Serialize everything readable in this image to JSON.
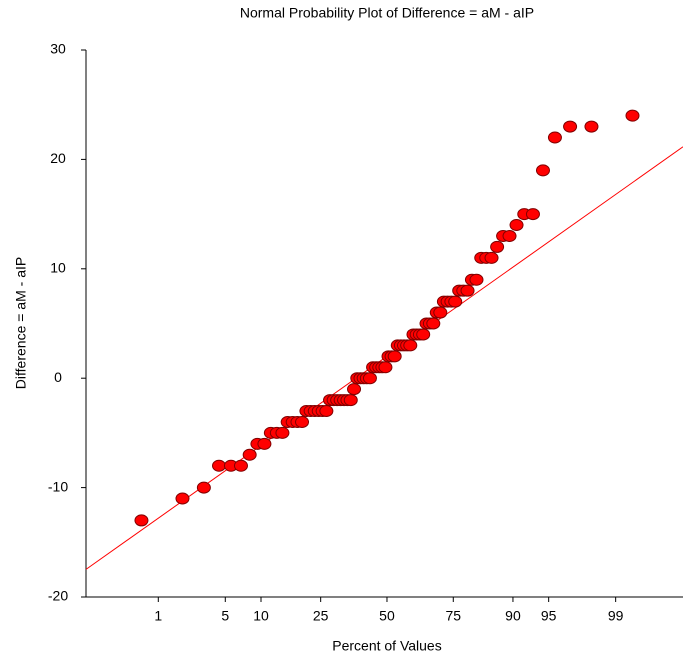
{
  "chart_data": {
    "type": "scatter",
    "title": "Normal Probability Plot of Difference = aM - aIP",
    "xlabel": "Percent of Values",
    "ylabel": "Difference = aM - aIP",
    "xscale": "probit",
    "xlim": [
      0.11,
      99.87
    ],
    "xticks": [
      1,
      5,
      10,
      25,
      50,
      75,
      90,
      95,
      99
    ],
    "ylim": [
      -20,
      30
    ],
    "yticks": [
      -20,
      -10,
      0,
      10,
      20,
      30
    ],
    "grid": false,
    "color": "#ff0000",
    "edgecolor": "#800000",
    "x": [
      0.625,
      1.875,
      3.125,
      4.375,
      5.625,
      6.875,
      8.125,
      9.375,
      10.625,
      11.875,
      13.125,
      14.375,
      15.625,
      16.875,
      18.125,
      19.375,
      20.625,
      21.875,
      23.125,
      24.375,
      25.625,
      26.875,
      28.125,
      29.375,
      30.625,
      31.875,
      33.125,
      34.375,
      35.625,
      36.875,
      38.125,
      39.375,
      40.625,
      41.875,
      43.125,
      44.375,
      45.625,
      46.875,
      48.125,
      49.375,
      50.625,
      51.875,
      53.125,
      54.375,
      55.625,
      56.875,
      58.125,
      59.375,
      60.625,
      61.875,
      63.125,
      64.375,
      65.625,
      66.875,
      68.125,
      69.375,
      70.625,
      71.875,
      73.125,
      74.375,
      75.625,
      76.875,
      78.125,
      79.375,
      80.625,
      81.875,
      83.125,
      84.375,
      85.625,
      86.875,
      88.125,
      89.375,
      90.625,
      91.875,
      93.125,
      94.375,
      95.625,
      96.875,
      98.125,
      99.375
    ],
    "values": [
      -13,
      -11,
      -10,
      -8,
      -8,
      -8,
      -7,
      -6,
      -6,
      -5,
      -5,
      -5,
      -4,
      -4,
      -4,
      -4,
      -3,
      -3,
      -3,
      -3,
      -3,
      -3,
      -2,
      -2,
      -2,
      -2,
      -2,
      -2,
      -2,
      -1,
      0,
      0,
      0,
      0,
      0,
      1,
      1,
      1,
      1,
      1,
      2,
      2,
      2,
      3,
      3,
      3,
      3,
      3,
      4,
      4,
      4,
      4,
      5,
      5,
      5,
      6,
      6,
      7,
      7,
      7,
      7,
      8,
      8,
      8,
      9,
      9,
      11,
      11,
      11,
      12,
      13,
      13,
      14,
      15,
      15,
      19,
      22,
      23,
      23,
      24
    ],
    "reference_line": {
      "mean": 2.0,
      "sd": 6.36,
      "color": "#ff0000"
    }
  }
}
